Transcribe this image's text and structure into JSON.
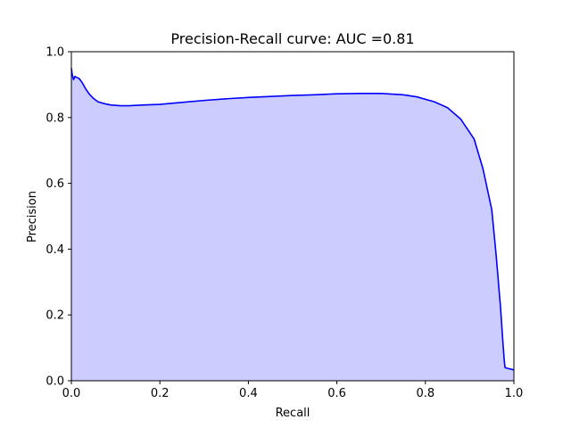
{
  "chart_data": {
    "type": "area",
    "title": "Precision-Recall curve: AUC =0.81",
    "xlabel": "Recall",
    "ylabel": "Precision",
    "xlim": [
      0.0,
      1.0
    ],
    "ylim": [
      0.0,
      1.0
    ],
    "xticks": [
      "0.0",
      "0.2",
      "0.4",
      "0.6",
      "0.8",
      "1.0"
    ],
    "yticks": [
      "0.0",
      "0.2",
      "0.4",
      "0.6",
      "0.8",
      "1.0"
    ],
    "grid": false,
    "line_color": "#0000ff",
    "fill_color": "#ccccff",
    "series": [
      {
        "x": [
          0.0,
          0.002,
          0.005,
          0.008,
          0.012,
          0.018,
          0.025,
          0.032,
          0.04,
          0.05,
          0.06,
          0.075,
          0.09,
          0.11,
          0.13,
          0.16,
          0.2,
          0.25,
          0.3,
          0.35,
          0.4,
          0.45,
          0.5,
          0.55,
          0.6,
          0.65,
          0.7,
          0.75,
          0.78,
          0.82,
          0.85,
          0.88,
          0.91,
          0.93,
          0.95,
          0.96,
          0.97,
          0.975,
          0.978,
          0.98,
          0.985,
          1.0
        ],
        "y": [
          0.95,
          0.93,
          0.915,
          0.925,
          0.922,
          0.918,
          0.905,
          0.888,
          0.872,
          0.858,
          0.848,
          0.842,
          0.838,
          0.836,
          0.836,
          0.838,
          0.84,
          0.846,
          0.852,
          0.857,
          0.861,
          0.864,
          0.867,
          0.869,
          0.872,
          0.873,
          0.873,
          0.869,
          0.863,
          0.848,
          0.83,
          0.795,
          0.735,
          0.645,
          0.52,
          0.38,
          0.22,
          0.12,
          0.065,
          0.04,
          0.038,
          0.033
        ]
      }
    ]
  }
}
